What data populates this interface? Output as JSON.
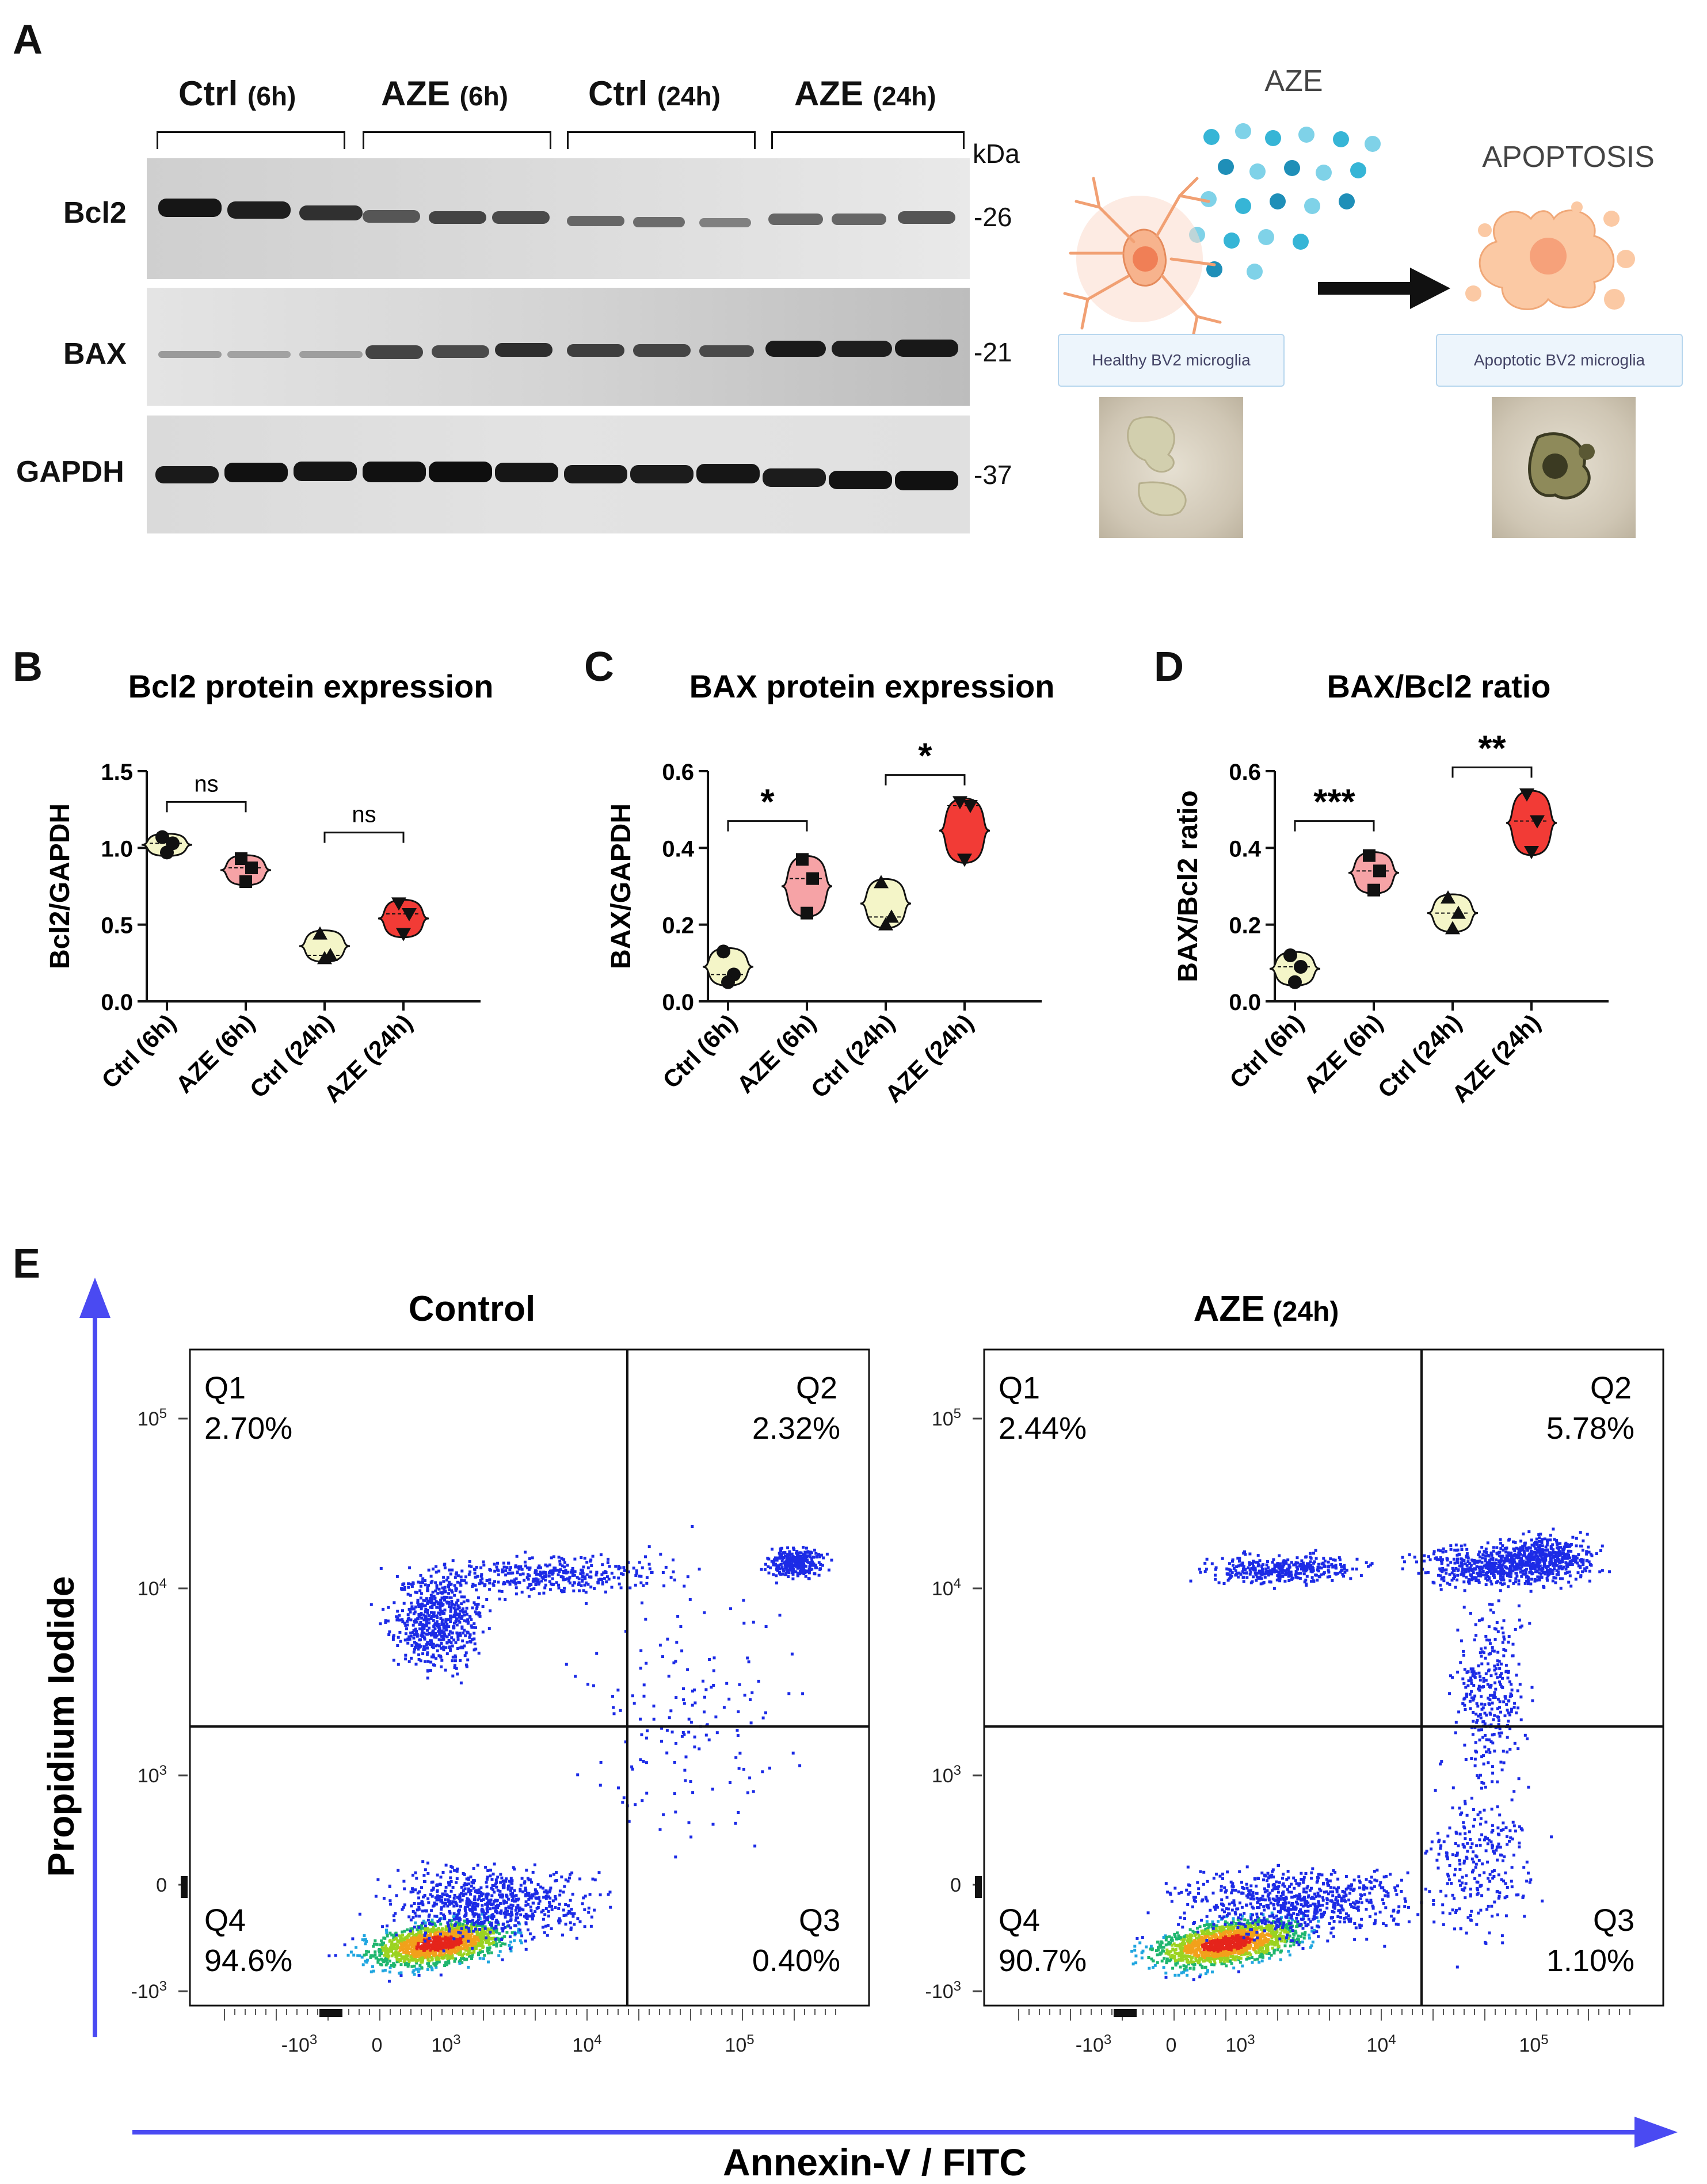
{
  "panels": {
    "a": "A",
    "b": "B",
    "c": "C",
    "d": "D",
    "e": "E"
  },
  "western_blot": {
    "groups": [
      {
        "label": "Ctrl",
        "time": "(6h)"
      },
      {
        "label": "AZE",
        "time": "(6h)"
      },
      {
        "label": "Ctrl",
        "time": "(24h)"
      },
      {
        "label": "AZE",
        "time": "(24h)"
      }
    ],
    "kda_unit": "kDa",
    "rows": [
      {
        "protein": "Bcl2",
        "kda": "-26"
      },
      {
        "protein": "BAX",
        "kda": "-21"
      },
      {
        "protein": "GAPDH",
        "kda": "-37"
      }
    ]
  },
  "schematic": {
    "treatment": "AZE",
    "outcome": "APOPTOSIS",
    "healthy_label": "Healthy BV2 microglia",
    "apoptotic_label": "Apoptotic BV2 microglia"
  },
  "chart_data": [
    {
      "id": "B",
      "type": "violin",
      "title": "Bcl2 protein expression",
      "ylabel": "Bcl2/GAPDH",
      "ylim": [
        0,
        1.5
      ],
      "yticks": [
        "0.0",
        "0.5",
        "1.0",
        "1.5"
      ],
      "categories": [
        "Ctrl (6h)",
        "AZE (6h)",
        "Ctrl (24h)",
        "AZE (24h)"
      ],
      "series": [
        {
          "name": "Ctrl (6h)",
          "values": [
            1.07,
            1.03,
            0.97
          ],
          "marker": "circle",
          "color": "#f4f5c8"
        },
        {
          "name": "AZE (6h)",
          "values": [
            0.93,
            0.87,
            0.78
          ],
          "marker": "square",
          "color": "#f6a3a6"
        },
        {
          "name": "Ctrl (24h)",
          "values": [
            0.44,
            0.3,
            0.28
          ],
          "marker": "triangle",
          "color": "#f4f5c8"
        },
        {
          "name": "AZE (24h)",
          "values": [
            0.64,
            0.57,
            0.44
          ],
          "marker": "triangle-down",
          "color": "#f23b36"
        }
      ],
      "comparisons": [
        {
          "from": 0,
          "to": 1,
          "label": "ns",
          "y": 1.3
        },
        {
          "from": 2,
          "to": 3,
          "label": "ns",
          "y": 1.1
        }
      ]
    },
    {
      "id": "C",
      "type": "violin",
      "title": "BAX protein expression",
      "ylabel": "BAX/GAPDH",
      "ylim": [
        0,
        0.6
      ],
      "yticks": [
        "0.0",
        "0.2",
        "0.4",
        "0.6"
      ],
      "categories": [
        "Ctrl (6h)",
        "AZE (6h)",
        "Ctrl (24h)",
        "AZE (24h)"
      ],
      "series": [
        {
          "name": "Ctrl (6h)",
          "values": [
            0.13,
            0.07,
            0.05
          ],
          "marker": "circle",
          "color": "#f4f5c8"
        },
        {
          "name": "AZE (6h)",
          "values": [
            0.37,
            0.32,
            0.23
          ],
          "marker": "square",
          "color": "#f6a3a6"
        },
        {
          "name": "Ctrl (24h)",
          "values": [
            0.31,
            0.22,
            0.2
          ],
          "marker": "triangle",
          "color": "#f4f5c8"
        },
        {
          "name": "AZE (24h)",
          "values": [
            0.52,
            0.51,
            0.37
          ],
          "marker": "triangle-down",
          "color": "#f23b36"
        }
      ],
      "comparisons": [
        {
          "from": 0,
          "to": 1,
          "label": "*",
          "y": 0.47
        },
        {
          "from": 2,
          "to": 3,
          "label": "*",
          "y": 0.59
        }
      ]
    },
    {
      "id": "D",
      "type": "violin",
      "title": "BAX/Bcl2 ratio",
      "ylabel": "BAX/Bcl2 ratio",
      "ylim": [
        0,
        0.6
      ],
      "yticks": [
        "0.0",
        "0.2",
        "0.4",
        "0.6"
      ],
      "categories": [
        "Ctrl (6h)",
        "AZE (6h)",
        "Ctrl (24h)",
        "AZE (24h)"
      ],
      "series": [
        {
          "name": "Ctrl (6h)",
          "values": [
            0.12,
            0.09,
            0.05
          ],
          "marker": "circle",
          "color": "#f4f5c8"
        },
        {
          "name": "AZE (6h)",
          "values": [
            0.38,
            0.34,
            0.29
          ],
          "marker": "square",
          "color": "#f6a3a6"
        },
        {
          "name": "Ctrl (24h)",
          "values": [
            0.27,
            0.23,
            0.19
          ],
          "marker": "triangle",
          "color": "#f4f5c8"
        },
        {
          "name": "AZE (24h)",
          "values": [
            0.54,
            0.47,
            0.39
          ],
          "marker": "triangle-down",
          "color": "#f23b36"
        }
      ],
      "comparisons": [
        {
          "from": 0,
          "to": 1,
          "label": "***",
          "y": 0.47
        },
        {
          "from": 2,
          "to": 3,
          "label": "**",
          "y": 0.61
        }
      ]
    },
    {
      "id": "E",
      "type": "scatter",
      "xlabel": "Annexin-V / FITC",
      "ylabel": "Propidium Iodide",
      "axis_ticks": {
        "y": [
          "10^5",
          "10^4",
          "10^3",
          "0",
          "-10^3"
        ],
        "x": [
          "-10^3",
          "0",
          "10^3",
          "10^4",
          "10^5"
        ]
      },
      "plots": [
        {
          "title": "Control",
          "title_suffix": "",
          "quadrants": {
            "Q1": "2.70%",
            "Q2": "2.32%",
            "Q3": "0.40%",
            "Q4": "94.6%"
          }
        },
        {
          "title": "AZE",
          "title_suffix": "(24h)",
          "quadrants": {
            "Q1": "2.44%",
            "Q2": "5.78%",
            "Q3": "1.10%",
            "Q4": "90.7%"
          }
        }
      ],
      "quadrant_names": {
        "q1": "Q1",
        "q2": "Q2",
        "q3": "Q3",
        "q4": "Q4"
      }
    }
  ]
}
